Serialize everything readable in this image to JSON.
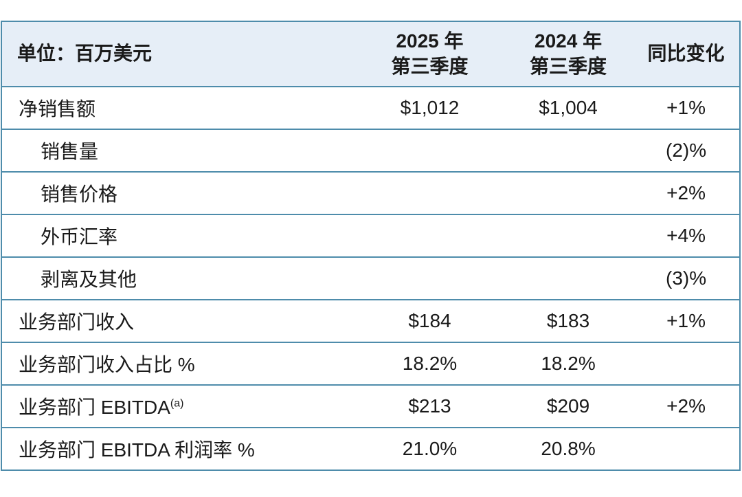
{
  "table": {
    "header": {
      "unit_label": "单位：百万美元",
      "q3_2025_line1": "2025 年",
      "q3_2025_line2": "第三季度",
      "q3_2024_line1": "2024 年",
      "q3_2024_line2": "第三季度",
      "yoy_label": "同比变化"
    },
    "rows": [
      {
        "label": "净销售额",
        "q3_2025": "$1,012",
        "q3_2024": "$1,004",
        "yoy": "+1%"
      },
      {
        "label": "销售量",
        "q3_2025": "",
        "q3_2024": "",
        "yoy": "(2)%"
      },
      {
        "label": "销售价格",
        "q3_2025": "",
        "q3_2024": "",
        "yoy": "+2%"
      },
      {
        "label": "外币汇率",
        "q3_2025": "",
        "q3_2024": "",
        "yoy": "+4%"
      },
      {
        "label": "剥离及其他",
        "q3_2025": "",
        "q3_2024": "",
        "yoy": "(3)%"
      },
      {
        "label": "业务部门收入",
        "q3_2025": "$184",
        "q3_2024": "$183",
        "yoy": "+1%"
      },
      {
        "label": "业务部门收入占比 %",
        "q3_2025": "18.2%",
        "q3_2024": "18.2%",
        "yoy": ""
      },
      {
        "label": "业务部门 EBITDA",
        "label_sup": "(a)",
        "q3_2025": "$213",
        "q3_2024": "$209",
        "yoy": "+2%"
      },
      {
        "label": "业务部门 EBITDA 利润率 %",
        "q3_2025": "21.0%",
        "q3_2024": "20.8%",
        "yoy": ""
      }
    ],
    "colors": {
      "header_bg": "#e6eef7",
      "border": "#4e8cab",
      "text": "#1a1a1a",
      "row_bg": "#ffffff"
    }
  },
  "chart_data": {
    "type": "table",
    "title": "单位：百万美元",
    "columns": [
      "单位：百万美元",
      "2025 年第三季度",
      "2024 年第三季度",
      "同比变化"
    ],
    "rows": [
      [
        "净销售额",
        "$1,012",
        "$1,004",
        "+1%"
      ],
      [
        "销售量",
        "",
        "",
        "(2)%"
      ],
      [
        "销售价格",
        "",
        "",
        "+2%"
      ],
      [
        "外币汇率",
        "",
        "",
        "+4%"
      ],
      [
        "剥离及其他",
        "",
        "",
        "(3)%"
      ],
      [
        "业务部门收入",
        "$184",
        "$183",
        "+1%"
      ],
      [
        "业务部门收入占比 %",
        "18.2%",
        "18.2%",
        ""
      ],
      [
        "业务部门 EBITDA(a)",
        "$213",
        "$209",
        "+2%"
      ],
      [
        "业务部门 EBITDA 利润率 %",
        "21.0%",
        "20.8%",
        ""
      ]
    ]
  }
}
